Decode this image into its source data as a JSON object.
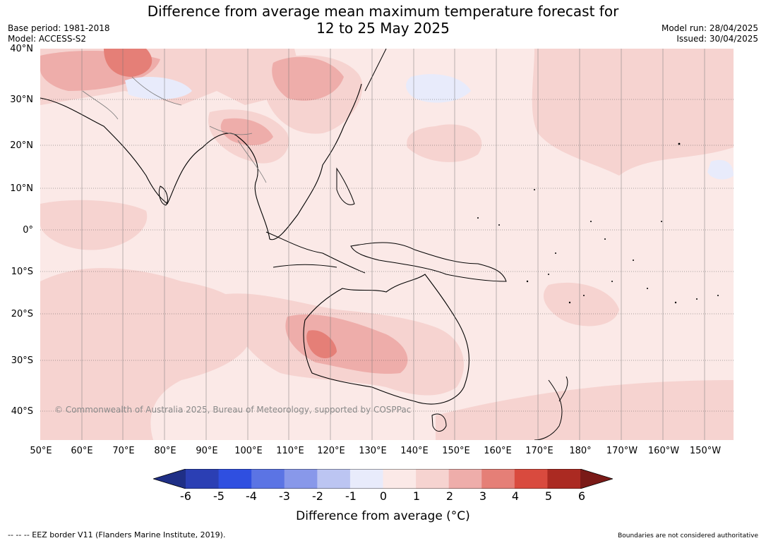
{
  "title": {
    "line1": "Difference from average mean maximum temperature forecast for",
    "line2": "12 to 25 May 2025"
  },
  "meta_left": {
    "base_period": "Base period: 1981-2018",
    "model": "Model: ACCESS-S2"
  },
  "meta_right": {
    "model_run": "Model run: 28/04/2025",
    "issued": "Issued: 30/04/2025"
  },
  "lat_labels": [
    "40°N",
    "30°N",
    "20°N",
    "10°N",
    "0°",
    "10°S",
    "20°S",
    "30°S",
    "40°S"
  ],
  "lon_labels": [
    "50°E",
    "60°E",
    "70°E",
    "80°E",
    "90°E",
    "100°E",
    "110°E",
    "120°E",
    "130°E",
    "140°E",
    "150°E",
    "160°E",
    "170°E",
    "180°",
    "170°W",
    "160°W",
    "150°W"
  ],
  "copyright": "© Commonwealth of Australia 2025, Bureau of Meteorology, supported by COSPPac",
  "colorbar": {
    "ticks": [
      "-6",
      "-5",
      "-4",
      "-3",
      "-2",
      "-1",
      "0",
      "1",
      "2",
      "3",
      "4",
      "5",
      "6"
    ],
    "colors": [
      "#1f2f86",
      "#2b3fb4",
      "#2f4fe0",
      "#5b74e4",
      "#8898ea",
      "#bcc5f2",
      "#e8ebfb",
      "#fbe9e7",
      "#f6d3d0",
      "#eeadaa",
      "#e57f77",
      "#d94a3e",
      "#ab2a22",
      "#7a1a17"
    ],
    "title": "Difference from average (°C)"
  },
  "footer_left": "--  --  -- EEZ border V11 (Flanders Marine Institute, 2019).",
  "footer_right": "Boundaries are not considered authoritative"
}
